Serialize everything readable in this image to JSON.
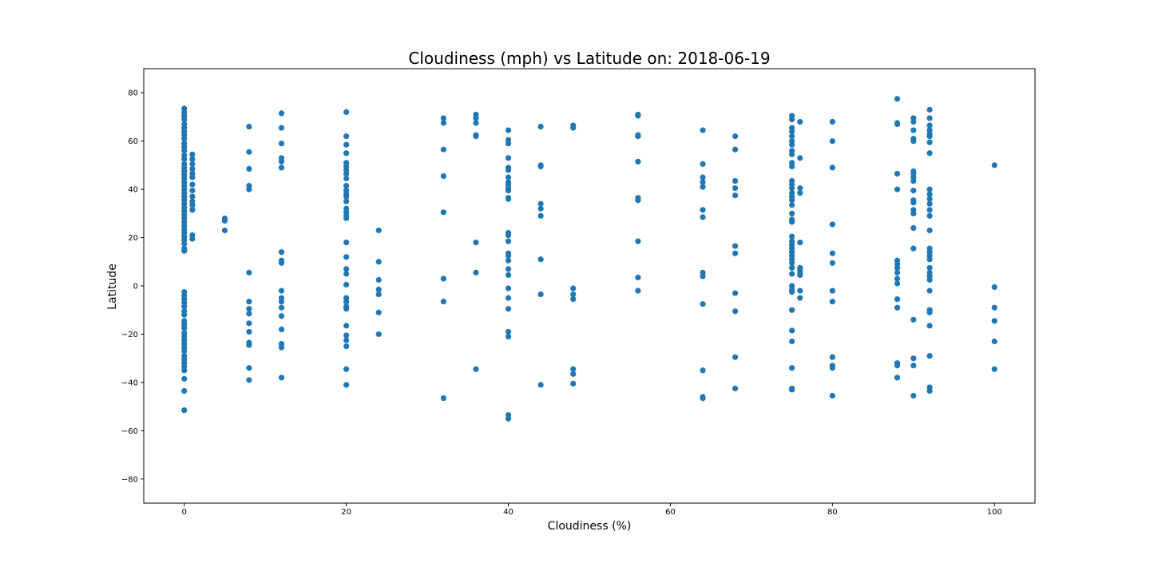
{
  "chart_data": {
    "type": "scatter",
    "title": "Cloudiness (mph) vs Latitude on: 2018-06-19",
    "xlabel": "Cloudiness (%)",
    "ylabel": "Latitude",
    "xlim": [
      -5,
      105
    ],
    "ylim": [
      -90,
      90
    ],
    "xticks": [
      0,
      20,
      40,
      60,
      80,
      100
    ],
    "yticks": [
      -80,
      -60,
      -40,
      -20,
      0,
      20,
      40,
      60,
      80
    ],
    "ytick_labels": [
      "−80",
      "−60",
      "−40",
      "−20",
      "0",
      "20",
      "40",
      "60",
      "80"
    ],
    "grid": false,
    "marker_color": "#1f77b4",
    "points": [
      [
        0,
        73.5
      ],
      [
        0,
        72
      ],
      [
        0,
        70.5
      ],
      [
        0,
        69
      ],
      [
        0,
        67
      ],
      [
        0,
        65.5
      ],
      [
        0,
        64
      ],
      [
        0,
        62.5
      ],
      [
        0,
        61
      ],
      [
        0,
        59
      ],
      [
        0,
        57.5
      ],
      [
        0,
        56
      ],
      [
        0,
        54
      ],
      [
        0,
        52.5
      ],
      [
        0,
        50.5
      ],
      [
        0,
        49
      ],
      [
        0,
        47.5
      ],
      [
        0,
        46
      ],
      [
        0,
        44.5
      ],
      [
        0,
        43
      ],
      [
        0,
        41.5
      ],
      [
        0,
        40
      ],
      [
        0,
        38.5
      ],
      [
        0,
        37
      ],
      [
        0,
        35.5
      ],
      [
        0,
        34
      ],
      [
        0,
        32.5
      ],
      [
        0,
        31
      ],
      [
        0,
        29.5
      ],
      [
        0,
        28
      ],
      [
        0,
        26.5
      ],
      [
        0,
        25
      ],
      [
        0,
        23.5
      ],
      [
        0,
        22
      ],
      [
        0,
        20.5
      ],
      [
        0,
        19
      ],
      [
        0,
        17.5
      ],
      [
        0,
        15.5
      ],
      [
        0,
        14.5
      ],
      [
        0,
        -2.5
      ],
      [
        0,
        -4
      ],
      [
        0,
        -5.5
      ],
      [
        0,
        -7
      ],
      [
        0,
        -8.5
      ],
      [
        0,
        -10.5
      ],
      [
        0,
        -12
      ],
      [
        0,
        -14.5
      ],
      [
        0,
        -16
      ],
      [
        0,
        -17.5
      ],
      [
        0,
        -19.5
      ],
      [
        0,
        -21
      ],
      [
        0,
        -22.5
      ],
      [
        0,
        -24
      ],
      [
        0,
        -25.5
      ],
      [
        0,
        -27
      ],
      [
        0,
        -29
      ],
      [
        0,
        -30.5
      ],
      [
        0,
        -32
      ],
      [
        0,
        -33.5
      ],
      [
        0,
        -35
      ],
      [
        0,
        -38.5
      ],
      [
        0,
        -43.5
      ],
      [
        0,
        -51.5
      ],
      [
        1,
        54.5
      ],
      [
        1,
        52.5
      ],
      [
        1,
        50.5
      ],
      [
        1,
        48.5
      ],
      [
        1,
        46.5
      ],
      [
        1,
        45
      ],
      [
        1,
        42
      ],
      [
        1,
        39.5
      ],
      [
        1,
        37
      ],
      [
        1,
        35
      ],
      [
        1,
        33.5
      ],
      [
        1,
        31.5
      ],
      [
        1,
        21
      ],
      [
        1,
        19.5
      ],
      [
        5,
        28
      ],
      [
        5,
        27
      ],
      [
        5,
        23
      ],
      [
        8,
        66
      ],
      [
        8,
        55.5
      ],
      [
        8,
        48.5
      ],
      [
        8,
        41.5
      ],
      [
        8,
        40
      ],
      [
        8,
        5.5
      ],
      [
        8,
        -6.5
      ],
      [
        8,
        -9.5
      ],
      [
        8,
        -11.5
      ],
      [
        8,
        -15.5
      ],
      [
        8,
        -19
      ],
      [
        8,
        -23.5
      ],
      [
        8,
        -24.5
      ],
      [
        8,
        -34
      ],
      [
        8,
        -39
      ],
      [
        12,
        71.5
      ],
      [
        12,
        65.5
      ],
      [
        12,
        59
      ],
      [
        12,
        53
      ],
      [
        12,
        51.5
      ],
      [
        12,
        49
      ],
      [
        12,
        14
      ],
      [
        12,
        10.5
      ],
      [
        12,
        9.5
      ],
      [
        12,
        -2
      ],
      [
        12,
        -5
      ],
      [
        12,
        -6.5
      ],
      [
        12,
        -9
      ],
      [
        12,
        -12.5
      ],
      [
        12,
        -18
      ],
      [
        12,
        -24
      ],
      [
        12,
        -25.5
      ],
      [
        12,
        -38
      ],
      [
        20,
        72
      ],
      [
        20,
        62
      ],
      [
        20,
        58.5
      ],
      [
        20,
        55
      ],
      [
        20,
        51
      ],
      [
        20,
        49.5
      ],
      [
        20,
        48
      ],
      [
        20,
        46.5
      ],
      [
        20,
        44.5
      ],
      [
        20,
        41.5
      ],
      [
        20,
        39.5
      ],
      [
        20,
        38
      ],
      [
        20,
        37
      ],
      [
        20,
        35
      ],
      [
        20,
        32
      ],
      [
        20,
        30.5
      ],
      [
        20,
        29
      ],
      [
        20,
        28
      ],
      [
        20,
        18
      ],
      [
        20,
        12
      ],
      [
        20,
        7
      ],
      [
        20,
        5
      ],
      [
        20,
        0.5
      ],
      [
        20,
        -5
      ],
      [
        20,
        -6.5
      ],
      [
        20,
        -8.5
      ],
      [
        20,
        -9.5
      ],
      [
        20,
        -16.5
      ],
      [
        20,
        -20.5
      ],
      [
        20,
        -22.5
      ],
      [
        20,
        -25
      ],
      [
        20,
        -34.5
      ],
      [
        20,
        -41
      ],
      [
        24,
        23
      ],
      [
        24,
        10
      ],
      [
        24,
        2.5
      ],
      [
        24,
        -1.5
      ],
      [
        24,
        -3.5
      ],
      [
        24,
        -11
      ],
      [
        24,
        -20
      ],
      [
        32,
        69.5
      ],
      [
        32,
        67.5
      ],
      [
        32,
        56.5
      ],
      [
        32,
        45.5
      ],
      [
        32,
        30.5
      ],
      [
        32,
        3
      ],
      [
        32,
        -6.5
      ],
      [
        32,
        -46.5
      ],
      [
        36,
        71
      ],
      [
        36,
        69.5
      ],
      [
        36,
        67.5
      ],
      [
        36,
        62.5
      ],
      [
        36,
        62
      ],
      [
        36,
        18
      ],
      [
        36,
        5.5
      ],
      [
        36,
        -34.5
      ],
      [
        40,
        64.5
      ],
      [
        40,
        60.5
      ],
      [
        40,
        59
      ],
      [
        40,
        53
      ],
      [
        40,
        49
      ],
      [
        40,
        48
      ],
      [
        40,
        45
      ],
      [
        40,
        43
      ],
      [
        40,
        42
      ],
      [
        40,
        40.5
      ],
      [
        40,
        39.5
      ],
      [
        40,
        36.5
      ],
      [
        40,
        36
      ],
      [
        40,
        22
      ],
      [
        40,
        21
      ],
      [
        40,
        18.5
      ],
      [
        40,
        13.5
      ],
      [
        40,
        12.5
      ],
      [
        40,
        10.5
      ],
      [
        40,
        7
      ],
      [
        40,
        4.5
      ],
      [
        40,
        -1
      ],
      [
        40,
        -5
      ],
      [
        40,
        -9.5
      ],
      [
        40,
        -19
      ],
      [
        40,
        -21
      ],
      [
        40,
        -53.5
      ],
      [
        40,
        -55
      ],
      [
        44,
        66
      ],
      [
        44,
        50
      ],
      [
        44,
        49.5
      ],
      [
        44,
        34
      ],
      [
        44,
        32
      ],
      [
        44,
        29
      ],
      [
        44,
        11
      ],
      [
        44,
        -3.5
      ],
      [
        44,
        -41
      ],
      [
        48,
        66.5
      ],
      [
        48,
        65.5
      ],
      [
        48,
        -1
      ],
      [
        48,
        -3.5
      ],
      [
        48,
        -5.5
      ],
      [
        48,
        -34.5
      ],
      [
        48,
        -36.5
      ],
      [
        48,
        -40.5
      ],
      [
        56,
        71
      ],
      [
        56,
        70.5
      ],
      [
        56,
        62.5
      ],
      [
        56,
        62
      ],
      [
        56,
        51.5
      ],
      [
        56,
        36.5
      ],
      [
        56,
        35.5
      ],
      [
        56,
        18.5
      ],
      [
        56,
        3.5
      ],
      [
        56,
        -2
      ],
      [
        64,
        64.5
      ],
      [
        64,
        50.5
      ],
      [
        64,
        45
      ],
      [
        64,
        43
      ],
      [
        64,
        41
      ],
      [
        64,
        31.5
      ],
      [
        64,
        28.5
      ],
      [
        64,
        5.5
      ],
      [
        64,
        4
      ],
      [
        64,
        -7.5
      ],
      [
        64,
        -35
      ],
      [
        64,
        -46
      ],
      [
        64,
        -46.5
      ],
      [
        68,
        62
      ],
      [
        68,
        56.5
      ],
      [
        68,
        43.5
      ],
      [
        68,
        40.5
      ],
      [
        68,
        37.5
      ],
      [
        68,
        16.5
      ],
      [
        68,
        13.5
      ],
      [
        68,
        -3
      ],
      [
        68,
        -10.5
      ],
      [
        68,
        -29.5
      ],
      [
        68,
        -42.5
      ],
      [
        75,
        70.5
      ],
      [
        75,
        69
      ],
      [
        75,
        65.5
      ],
      [
        75,
        64
      ],
      [
        75,
        62
      ],
      [
        75,
        60
      ],
      [
        75,
        58.5
      ],
      [
        75,
        56
      ],
      [
        75,
        54.5
      ],
      [
        75,
        51
      ],
      [
        75,
        49.5
      ],
      [
        75,
        43.5
      ],
      [
        75,
        42
      ],
      [
        75,
        40.5
      ],
      [
        75,
        38.5
      ],
      [
        75,
        37
      ],
      [
        75,
        35.5
      ],
      [
        75,
        33.5
      ],
      [
        75,
        30
      ],
      [
        75,
        27.5
      ],
      [
        75,
        26.5
      ],
      [
        75,
        20.5
      ],
      [
        75,
        18.5
      ],
      [
        75,
        17
      ],
      [
        75,
        15.5
      ],
      [
        75,
        14
      ],
      [
        75,
        12.5
      ],
      [
        75,
        11
      ],
      [
        75,
        9.5
      ],
      [
        75,
        7.5
      ],
      [
        75,
        5
      ],
      [
        75,
        0
      ],
      [
        75,
        -1.5
      ],
      [
        75,
        -2.5
      ],
      [
        75,
        -10
      ],
      [
        75,
        -18.5
      ],
      [
        75,
        -23
      ],
      [
        75,
        -34
      ],
      [
        75,
        -42.5
      ],
      [
        75,
        -43
      ],
      [
        76,
        68
      ],
      [
        76,
        53
      ],
      [
        76,
        40.5
      ],
      [
        76,
        38.5
      ],
      [
        76,
        18
      ],
      [
        76,
        7.5
      ],
      [
        76,
        6.5
      ],
      [
        76,
        5.5
      ],
      [
        76,
        4.5
      ],
      [
        76,
        -2
      ],
      [
        76,
        -5
      ],
      [
        80,
        68
      ],
      [
        80,
        60
      ],
      [
        80,
        49
      ],
      [
        80,
        25.5
      ],
      [
        80,
        13.5
      ],
      [
        80,
        9.5
      ],
      [
        80,
        -2
      ],
      [
        80,
        -6.5
      ],
      [
        80,
        -29.5
      ],
      [
        80,
        -33
      ],
      [
        80,
        -34
      ],
      [
        80,
        -45.5
      ],
      [
        88,
        77.5
      ],
      [
        88,
        67.5
      ],
      [
        88,
        67
      ],
      [
        88,
        46.5
      ],
      [
        88,
        40
      ],
      [
        88,
        10.5
      ],
      [
        88,
        9
      ],
      [
        88,
        7.5
      ],
      [
        88,
        5.5
      ],
      [
        88,
        3
      ],
      [
        88,
        1
      ],
      [
        88,
        -5.5
      ],
      [
        88,
        -9
      ],
      [
        88,
        -32
      ],
      [
        88,
        -33
      ],
      [
        88,
        -38
      ],
      [
        90,
        69.5
      ],
      [
        90,
        68
      ],
      [
        90,
        64.5
      ],
      [
        90,
        61
      ],
      [
        90,
        60
      ],
      [
        90,
        47.5
      ],
      [
        90,
        46.5
      ],
      [
        90,
        45
      ],
      [
        90,
        43.5
      ],
      [
        90,
        39.5
      ],
      [
        90,
        35.5
      ],
      [
        90,
        34.5
      ],
      [
        90,
        31.5
      ],
      [
        90,
        30
      ],
      [
        90,
        24
      ],
      [
        90,
        15.5
      ],
      [
        90,
        -14
      ],
      [
        90,
        -30
      ],
      [
        90,
        -33
      ],
      [
        90,
        -45.5
      ],
      [
        92,
        73
      ],
      [
        92,
        69.5
      ],
      [
        92,
        66.5
      ],
      [
        92,
        64.5
      ],
      [
        92,
        63
      ],
      [
        92,
        62
      ],
      [
        92,
        59.5
      ],
      [
        92,
        55
      ],
      [
        92,
        40
      ],
      [
        92,
        38
      ],
      [
        92,
        36
      ],
      [
        92,
        34
      ],
      [
        92,
        31.5
      ],
      [
        92,
        29
      ],
      [
        92,
        23
      ],
      [
        92,
        15.5
      ],
      [
        92,
        14
      ],
      [
        92,
        12.5
      ],
      [
        92,
        11
      ],
      [
        92,
        7.5
      ],
      [
        92,
        5.5
      ],
      [
        92,
        4
      ],
      [
        92,
        2.5
      ],
      [
        92,
        -2
      ],
      [
        92,
        -10
      ],
      [
        92,
        -11
      ],
      [
        92,
        -16.5
      ],
      [
        92,
        -29
      ],
      [
        92,
        -42
      ],
      [
        92,
        -43.5
      ],
      [
        100,
        50
      ],
      [
        100,
        -0.5
      ],
      [
        100,
        -9
      ],
      [
        100,
        -14.5
      ],
      [
        100,
        -23
      ],
      [
        100,
        -34.5
      ]
    ]
  }
}
